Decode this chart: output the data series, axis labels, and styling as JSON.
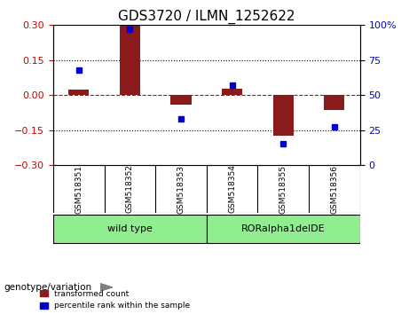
{
  "title": "GDS3720 / ILMN_1252622",
  "samples": [
    "GSM518351",
    "GSM518352",
    "GSM518353",
    "GSM518354",
    "GSM518355",
    "GSM518356"
  ],
  "red_bars": [
    0.022,
    0.3,
    -0.04,
    0.028,
    -0.175,
    -0.065
  ],
  "blue_dots": [
    0.68,
    0.97,
    0.33,
    0.57,
    0.15,
    0.27
  ],
  "ylim_left": [
    -0.3,
    0.3
  ],
  "ylim_right": [
    0,
    1.0
  ],
  "yticks_left": [
    -0.3,
    -0.15,
    0,
    0.15,
    0.3
  ],
  "yticks_right": [
    0,
    0.25,
    0.5,
    0.75,
    1.0
  ],
  "ytick_right_labels": [
    "0",
    "25",
    "50",
    "75",
    "100%"
  ],
  "hlines": [
    0.15,
    -0.15
  ],
  "groups": [
    {
      "label": "wild type",
      "samples": [
        0,
        1,
        2
      ],
      "color": "#90ee90"
    },
    {
      "label": "RORalpha1delDE",
      "samples": [
        3,
        4,
        5
      ],
      "color": "#90ee90"
    }
  ],
  "group_label": "genotype/variation",
  "red_color": "#8b1a1a",
  "blue_color": "#0000cd",
  "zero_line_color": "#cc0000",
  "grid_color": "#000000",
  "bar_width": 0.4,
  "legend_red": "transformed count",
  "legend_blue": "percentile rank within the sample",
  "title_fontsize": 11,
  "tick_fontsize": 8,
  "label_fontsize": 8
}
